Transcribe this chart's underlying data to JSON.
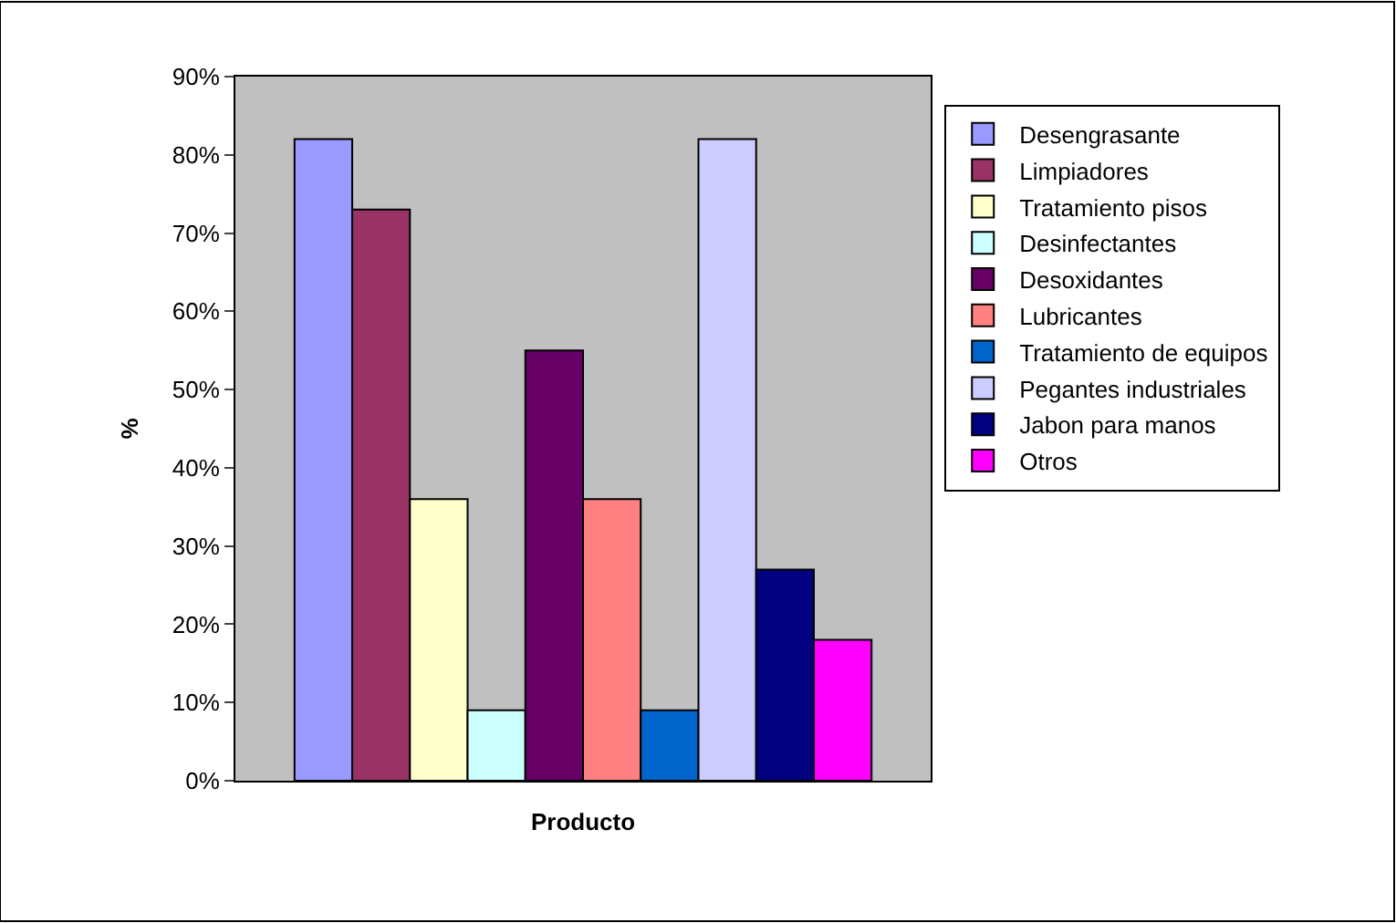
{
  "chart_data": {
    "type": "bar",
    "xlabel": "Producto",
    "ylabel": "%",
    "categories": [
      null
    ],
    "series": [
      {
        "name": "Desengrasante",
        "color": "#9999ff",
        "values": [
          82
        ]
      },
      {
        "name": "Limpiadores",
        "color": "#993366",
        "values": [
          73
        ]
      },
      {
        "name": "Tratamiento pisos",
        "color": "#ffffcc",
        "values": [
          36
        ]
      },
      {
        "name": "Desinfectantes",
        "color": "#ccffff",
        "values": [
          9
        ]
      },
      {
        "name": "Desoxidantes",
        "color": "#660066",
        "values": [
          55
        ]
      },
      {
        "name": "Lubricantes",
        "color": "#ff8080",
        "values": [
          36
        ]
      },
      {
        "name": "Tratamiento de equipos",
        "color": "#0066cc",
        "values": [
          9
        ]
      },
      {
        "name": "Pegantes industriales",
        "color": "#ccccff",
        "values": [
          82
        ]
      },
      {
        "name": "Jabon para manos",
        "color": "#000080",
        "values": [
          27
        ]
      },
      {
        "name": "Otros",
        "color": "#ff00ff",
        "values": [
          18
        ]
      }
    ],
    "ylim": [
      0,
      90
    ],
    "yticks": [
      {
        "value": 0,
        "label": "0%"
      },
      {
        "value": 10,
        "label": "10%"
      },
      {
        "value": 20,
        "label": "20%"
      },
      {
        "value": 30,
        "label": "30%"
      },
      {
        "value": 40,
        "label": "40%"
      },
      {
        "value": 50,
        "label": "50%"
      },
      {
        "value": 60,
        "label": "60%"
      },
      {
        "value": 70,
        "label": "70%"
      },
      {
        "value": 80,
        "label": "80%"
      },
      {
        "value": 90,
        "label": "90%"
      }
    ],
    "grid": false,
    "legend": "right"
  }
}
